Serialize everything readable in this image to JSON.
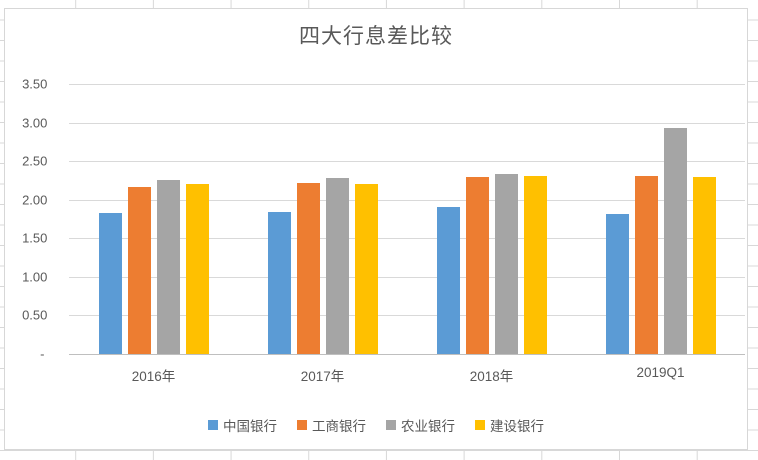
{
  "chart_data": {
    "type": "bar",
    "title": "四大行息差比较",
    "categories": [
      "2016年",
      "2017年",
      "2018年",
      "2019Q1"
    ],
    "series": [
      {
        "name": "中国银行",
        "color": "#5B9BD5",
        "values": [
          1.83,
          1.84,
          1.9,
          1.82
        ]
      },
      {
        "name": "工商银行",
        "color": "#ED7D31",
        "values": [
          2.16,
          2.22,
          2.3,
          2.31
        ]
      },
      {
        "name": "农业银行",
        "color": "#A5A5A5",
        "values": [
          2.25,
          2.28,
          2.33,
          2.93
        ]
      },
      {
        "name": "建设银行",
        "color": "#FFC000",
        "values": [
          2.2,
          2.21,
          2.31,
          2.29
        ]
      }
    ],
    "xlabel": "",
    "ylabel": "",
    "ylim": [
      0,
      3.5
    ],
    "y_ticks": [
      {
        "value": 3.5,
        "label": "3.50"
      },
      {
        "value": 3.0,
        "label": "3.00"
      },
      {
        "value": 2.5,
        "label": "2.50"
      },
      {
        "value": 2.0,
        "label": "2.00"
      },
      {
        "value": 1.5,
        "label": "1.50"
      },
      {
        "value": 1.0,
        "label": "1.00"
      },
      {
        "value": 0.5,
        "label": "0.50"
      },
      {
        "value": 0.0,
        "label": "-"
      }
    ],
    "grid": true,
    "legend_position": "bottom"
  },
  "colors": {
    "title_text": "#595959",
    "axis_text": "#595959",
    "gridline": "#d9d9d9",
    "axis_line": "#bfbfbf",
    "chart_border": "#d7d7d7",
    "spreadsheet_gridline": "#d8d8d8"
  }
}
